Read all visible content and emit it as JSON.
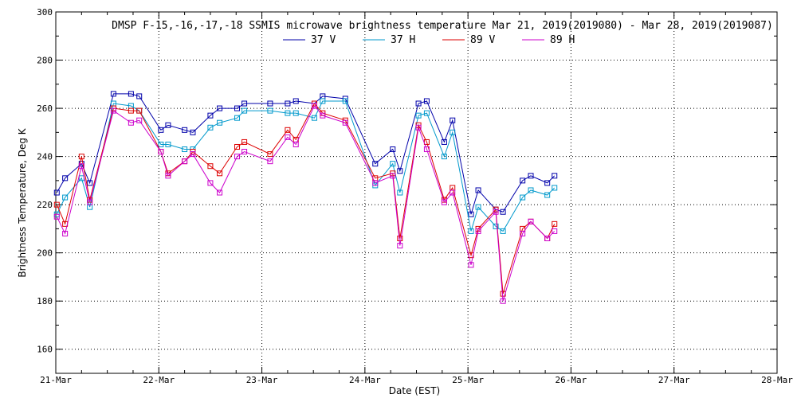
{
  "chart_data": {
    "type": "line",
    "title": "DMSP F-15,-16,-17,-18 SSMIS microwave brightness temperature Mar 21, 2019(2019080) - Mar 28, 2019(2019087)",
    "xlabel": "Date (EST)",
    "ylabel": "Brightness Temperature, Deg K",
    "xlim": [
      0,
      7
    ],
    "ylim": [
      150,
      300
    ],
    "x_ticks": [
      {
        "value": 0,
        "label": "21-Mar"
      },
      {
        "value": 1,
        "label": "22-Mar"
      },
      {
        "value": 2,
        "label": "23-Mar"
      },
      {
        "value": 3,
        "label": "24-Mar"
      },
      {
        "value": 4,
        "label": "25-Mar"
      },
      {
        "value": 5,
        "label": "26-Mar"
      },
      {
        "value": 6,
        "label": "27-Mar"
      },
      {
        "value": 7,
        "label": "28-Mar"
      }
    ],
    "y_ticks": [
      160,
      180,
      200,
      220,
      240,
      260,
      280,
      300
    ],
    "grid": true,
    "legend_position": "top",
    "series": [
      {
        "name": "37 V",
        "color": "#0000aa",
        "points": [
          [
            0.01,
            225
          ],
          [
            0.09,
            231
          ],
          [
            0.25,
            237
          ],
          [
            0.33,
            229
          ],
          [
            0.56,
            266
          ],
          [
            0.73,
            266
          ],
          [
            0.81,
            265
          ],
          [
            1.02,
            251
          ],
          [
            1.09,
            253
          ],
          [
            1.25,
            251
          ],
          [
            1.33,
            250
          ],
          [
            1.5,
            257
          ],
          [
            1.59,
            260
          ],
          [
            1.76,
            260
          ],
          [
            1.83,
            262
          ],
          [
            2.08,
            262
          ],
          [
            2.25,
            262
          ],
          [
            2.33,
            263
          ],
          [
            2.51,
            262
          ],
          [
            2.59,
            265
          ],
          [
            2.81,
            264
          ],
          [
            3.1,
            237
          ],
          [
            3.27,
            243
          ],
          [
            3.34,
            234
          ],
          [
            3.52,
            262
          ],
          [
            3.6,
            263
          ],
          [
            3.77,
            246
          ],
          [
            3.85,
            255
          ],
          [
            4.03,
            216
          ],
          [
            4.1,
            226
          ],
          [
            4.27,
            218
          ],
          [
            4.34,
            217
          ],
          [
            4.53,
            230
          ],
          [
            4.61,
            232
          ],
          [
            4.77,
            229
          ],
          [
            4.84,
            232
          ]
        ]
      },
      {
        "name": "37 H",
        "color": "#0099cc",
        "points": [
          [
            0.01,
            216
          ],
          [
            0.09,
            223
          ],
          [
            0.25,
            231
          ],
          [
            0.33,
            219
          ],
          [
            0.56,
            262
          ],
          [
            0.73,
            261
          ],
          [
            0.81,
            259
          ],
          [
            1.02,
            245
          ],
          [
            1.09,
            245
          ],
          [
            1.25,
            243
          ],
          [
            1.33,
            243
          ],
          [
            1.5,
            252
          ],
          [
            1.59,
            254
          ],
          [
            1.76,
            256
          ],
          [
            1.83,
            259
          ],
          [
            2.08,
            259
          ],
          [
            2.25,
            258
          ],
          [
            2.33,
            258
          ],
          [
            2.51,
            256
          ],
          [
            2.59,
            263
          ],
          [
            2.81,
            263
          ],
          [
            3.1,
            228
          ],
          [
            3.27,
            237
          ],
          [
            3.34,
            225
          ],
          [
            3.52,
            257
          ],
          [
            3.6,
            258
          ],
          [
            3.77,
            240
          ],
          [
            3.85,
            250
          ],
          [
            4.03,
            209
          ],
          [
            4.1,
            219
          ],
          [
            4.27,
            211
          ],
          [
            4.34,
            209
          ],
          [
            4.53,
            223
          ],
          [
            4.61,
            226
          ],
          [
            4.77,
            224
          ],
          [
            4.84,
            227
          ]
        ]
      },
      {
        "name": "89 V",
        "color": "#dd0000",
        "points": [
          [
            0.01,
            220
          ],
          [
            0.09,
            212
          ],
          [
            0.25,
            240
          ],
          [
            0.33,
            222
          ],
          [
            0.56,
            260
          ],
          [
            0.73,
            259
          ],
          [
            0.81,
            259
          ],
          [
            1.02,
            242
          ],
          [
            1.09,
            233
          ],
          [
            1.25,
            238
          ],
          [
            1.33,
            242
          ],
          [
            1.5,
            236
          ],
          [
            1.59,
            233
          ],
          [
            1.76,
            244
          ],
          [
            1.83,
            246
          ],
          [
            2.08,
            241
          ],
          [
            2.25,
            251
          ],
          [
            2.33,
            247
          ],
          [
            2.51,
            262
          ],
          [
            2.59,
            258
          ],
          [
            2.81,
            255
          ],
          [
            3.1,
            231
          ],
          [
            3.27,
            233
          ],
          [
            3.34,
            206
          ],
          [
            3.52,
            253
          ],
          [
            3.6,
            246
          ],
          [
            3.77,
            222
          ],
          [
            3.85,
            227
          ],
          [
            4.03,
            199
          ],
          [
            4.1,
            210
          ],
          [
            4.27,
            218
          ],
          [
            4.34,
            183
          ],
          [
            4.53,
            210
          ],
          [
            4.61,
            213
          ],
          [
            4.77,
            206
          ],
          [
            4.84,
            212
          ]
        ]
      },
      {
        "name": "89 H",
        "color": "#cc00cc",
        "points": [
          [
            0.01,
            215
          ],
          [
            0.09,
            208
          ],
          [
            0.25,
            236
          ],
          [
            0.33,
            221
          ],
          [
            0.56,
            259
          ],
          [
            0.73,
            254
          ],
          [
            0.81,
            255
          ],
          [
            1.02,
            242
          ],
          [
            1.09,
            232
          ],
          [
            1.25,
            238
          ],
          [
            1.33,
            241
          ],
          [
            1.5,
            229
          ],
          [
            1.59,
            225
          ],
          [
            1.76,
            240
          ],
          [
            1.83,
            242
          ],
          [
            2.08,
            238
          ],
          [
            2.25,
            248
          ],
          [
            2.33,
            245
          ],
          [
            2.51,
            261
          ],
          [
            2.59,
            257
          ],
          [
            2.81,
            254
          ],
          [
            3.1,
            229
          ],
          [
            3.27,
            232
          ],
          [
            3.34,
            203
          ],
          [
            3.52,
            252
          ],
          [
            3.6,
            243
          ],
          [
            3.77,
            221
          ],
          [
            3.85,
            225
          ],
          [
            4.03,
            195
          ],
          [
            4.1,
            209
          ],
          [
            4.27,
            217
          ],
          [
            4.34,
            180
          ],
          [
            4.53,
            208
          ],
          [
            4.61,
            213
          ],
          [
            4.77,
            206
          ],
          [
            4.84,
            209
          ]
        ]
      }
    ]
  }
}
